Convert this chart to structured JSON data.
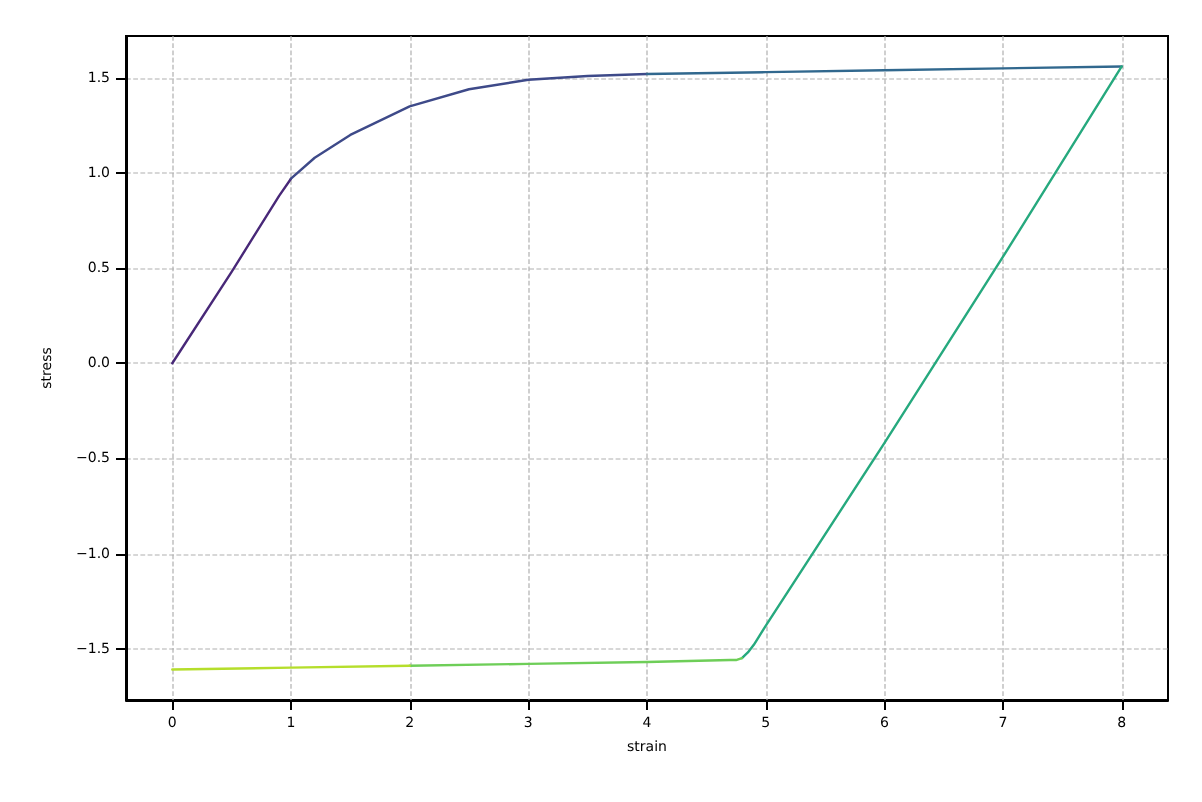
{
  "chart_data": {
    "type": "line",
    "xlabel": "strain",
    "ylabel": "stress",
    "xlim": [
      -0.39,
      8.39
    ],
    "ylim": [
      -1.77,
      1.72
    ],
    "xticks": [
      0,
      1,
      2,
      3,
      4,
      5,
      6,
      7,
      8
    ],
    "yticks": [
      {
        "value": -1.5,
        "label": "−1.5"
      },
      {
        "value": -1,
        "label": "−1.0"
      },
      {
        "value": -0.5,
        "label": "−0.5"
      },
      {
        "value": 0,
        "label": "0.0"
      },
      {
        "value": 0.5,
        "label": "0.5"
      },
      {
        "value": 1,
        "label": "1.0"
      },
      {
        "value": 1.5,
        "label": "1.5"
      }
    ],
    "grid": true,
    "marker": "none",
    "line_style": "solid",
    "series": [
      {
        "color": "#482878",
        "x": [
          0,
          0.5,
          0.9,
          1.0
        ],
        "values": [
          0,
          0.48,
          0.88,
          0.97
        ]
      },
      {
        "color": "#3e4a89",
        "x": [
          1.0,
          1.2,
          1.5,
          2.0,
          2.5,
          3.0,
          3.5,
          4.0
        ],
        "values": [
          0.97,
          1.08,
          1.2,
          1.35,
          1.44,
          1.49,
          1.51,
          1.52
        ]
      },
      {
        "color": "#31688e",
        "x": [
          4.0,
          5.0,
          6.0,
          7.0,
          8.0
        ],
        "values": [
          1.52,
          1.53,
          1.54,
          1.55,
          1.56
        ]
      },
      {
        "color": "#26a97e",
        "x": [
          8.0,
          7.0,
          6.0,
          5.0,
          4.95,
          4.9,
          4.85,
          4.8
        ],
        "values": [
          1.56,
          0.56,
          -0.42,
          -1.38,
          -1.43,
          -1.48,
          -1.52,
          -1.55
        ]
      },
      {
        "color": "#6ece58",
        "x": [
          4.8,
          4.75,
          4.7,
          4.0,
          3.0,
          2.0
        ],
        "values": [
          -1.55,
          -1.56,
          -1.56,
          -1.57,
          -1.58,
          -1.59
        ]
      },
      {
        "color": "#b5de2b",
        "x": [
          2.0,
          1.0,
          0.0
        ],
        "values": [
          -1.59,
          -1.6,
          -1.61
        ]
      }
    ]
  }
}
